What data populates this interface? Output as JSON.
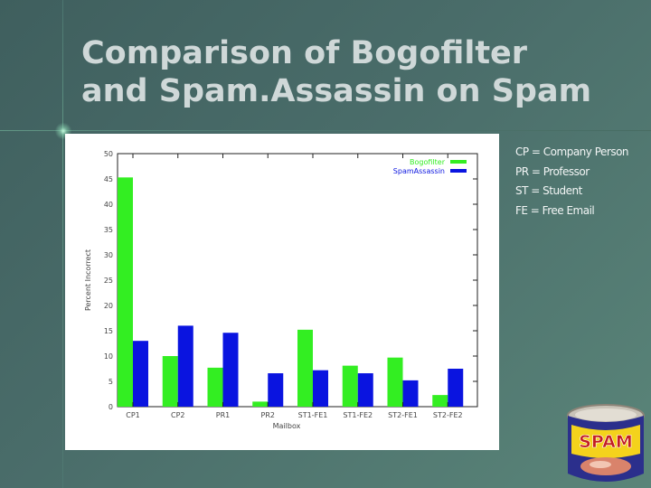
{
  "title": {
    "line1": "Comparison of Bogofilter",
    "line2": "and Spam.Assassin on Spam"
  },
  "notes": [
    "CP = Company Person",
    "PR = Professor",
    "ST = Student",
    "FE = Free Email"
  ],
  "colors": {
    "bogofilter": "#33ee22",
    "spamassassin": "#0a14e0",
    "title": "#cfd8d8"
  },
  "spam_can": {
    "label": "SPAM",
    "icon": "spam-can-icon"
  },
  "chart_data": {
    "type": "bar",
    "xlabel": "Mailbox",
    "ylabel": "Percent Incorrect",
    "ylim": [
      0,
      50
    ],
    "yticks": [
      0,
      5,
      10,
      15,
      20,
      25,
      30,
      35,
      40,
      45,
      50
    ],
    "categories": [
      "CP1",
      "CP2",
      "PR1",
      "PR2",
      "ST1-FE1",
      "ST1-FE2",
      "ST2-FE1",
      "ST2-FE2"
    ],
    "series": [
      {
        "name": "Bogofilter",
        "color": "#33ee22",
        "values": [
          45.3,
          10.0,
          7.7,
          1.0,
          15.2,
          8.1,
          9.7,
          2.3
        ]
      },
      {
        "name": "SpamAssassin",
        "color": "#0a14e0",
        "values": [
          13.0,
          16.0,
          14.6,
          6.6,
          7.2,
          6.6,
          5.2,
          7.5
        ]
      }
    ],
    "legend": "top-right",
    "grid": false
  }
}
